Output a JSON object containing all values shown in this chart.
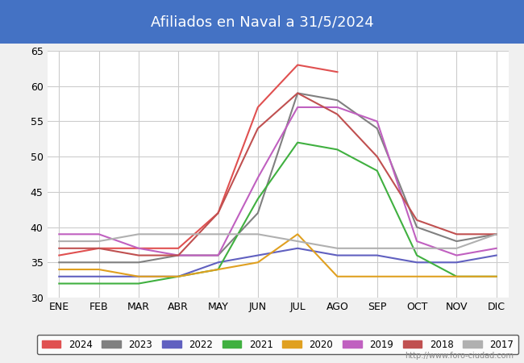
{
  "title": "Afiliados en Naval a 31/5/2024",
  "title_bg_color": "#4472c4",
  "title_text_color": "white",
  "months": [
    "ENE",
    "FEB",
    "MAR",
    "ABR",
    "MAY",
    "JUN",
    "JUL",
    "AGO",
    "SEP",
    "OCT",
    "NOV",
    "DIC"
  ],
  "ylim": [
    30,
    65
  ],
  "yticks": [
    30,
    35,
    40,
    45,
    50,
    55,
    60,
    65
  ],
  "series": {
    "2024": {
      "color": "#e05050",
      "data": [
        36,
        37,
        37,
        37,
        42,
        57,
        63,
        62,
        null,
        null,
        null,
        null
      ]
    },
    "2023": {
      "color": "#808080",
      "data": [
        35,
        35,
        35,
        36,
        36,
        42,
        59,
        58,
        54,
        40,
        38,
        39
      ]
    },
    "2022": {
      "color": "#6060c0",
      "data": [
        33,
        33,
        33,
        33,
        35,
        36,
        37,
        36,
        36,
        35,
        35,
        36
      ]
    },
    "2021": {
      "color": "#40b040",
      "data": [
        32,
        32,
        32,
        33,
        34,
        44,
        52,
        51,
        48,
        36,
        33,
        33
      ]
    },
    "2020": {
      "color": "#e0a020",
      "data": [
        34,
        34,
        33,
        33,
        34,
        35,
        39,
        33,
        33,
        33,
        33,
        33
      ]
    },
    "2019": {
      "color": "#c060c0",
      "data": [
        39,
        39,
        37,
        36,
        36,
        47,
        57,
        57,
        55,
        38,
        36,
        37
      ]
    },
    "2018": {
      "color": "#c05050",
      "data": [
        37,
        37,
        36,
        36,
        42,
        54,
        59,
        56,
        50,
        41,
        39,
        39
      ]
    },
    "2017": {
      "color": "#b0b0b0",
      "data": [
        38,
        38,
        39,
        39,
        39,
        39,
        38,
        37,
        37,
        37,
        37,
        39
      ]
    }
  },
  "legend_order": [
    "2024",
    "2023",
    "2022",
    "2021",
    "2020",
    "2019",
    "2018",
    "2017"
  ],
  "watermark": "http://www.foro-ciudad.com",
  "bg_color": "#f0f0f0",
  "plot_bg_color": "#ffffff",
  "grid_color": "#cccccc"
}
